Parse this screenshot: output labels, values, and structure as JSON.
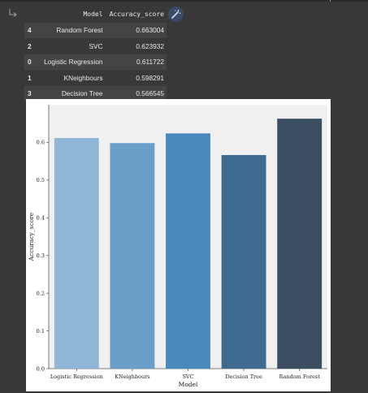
{
  "output_icon": "output-arrow-icon",
  "magic_button": {
    "icon": "magic-wand-icon"
  },
  "dataframe": {
    "columns": [
      "Model",
      "Accuracy_score"
    ],
    "rows": [
      {
        "index": "4",
        "model": "Random Forest",
        "score": "0.663004"
      },
      {
        "index": "2",
        "model": "SVC",
        "score": "0.623932"
      },
      {
        "index": "0",
        "model": "Logistic Regression",
        "score": "0.611722"
      },
      {
        "index": "1",
        "model": "KNeighbours",
        "score": "0.598291"
      },
      {
        "index": "3",
        "model": "Decision Tree",
        "score": "0.566545"
      }
    ]
  },
  "chart_data": {
    "type": "bar",
    "categories": [
      "Logistic Regression",
      "KNeighbours",
      "SVC",
      "Decision Tree",
      "Random Forest"
    ],
    "values": [
      0.611722,
      0.598291,
      0.623932,
      0.566545,
      0.663004
    ],
    "colors": [
      "#8fb6d6",
      "#6a9fc9",
      "#4a88bd",
      "#406b91",
      "#3a4d61"
    ],
    "xlabel": "Model",
    "ylabel": "Accuracy_score",
    "ylim": [
      0,
      0.7
    ],
    "yticks": [
      "0.0",
      "0.1",
      "0.2",
      "0.3",
      "0.4",
      "0.5",
      "0.6"
    ],
    "grid": false,
    "background": "#f0f0f0"
  }
}
